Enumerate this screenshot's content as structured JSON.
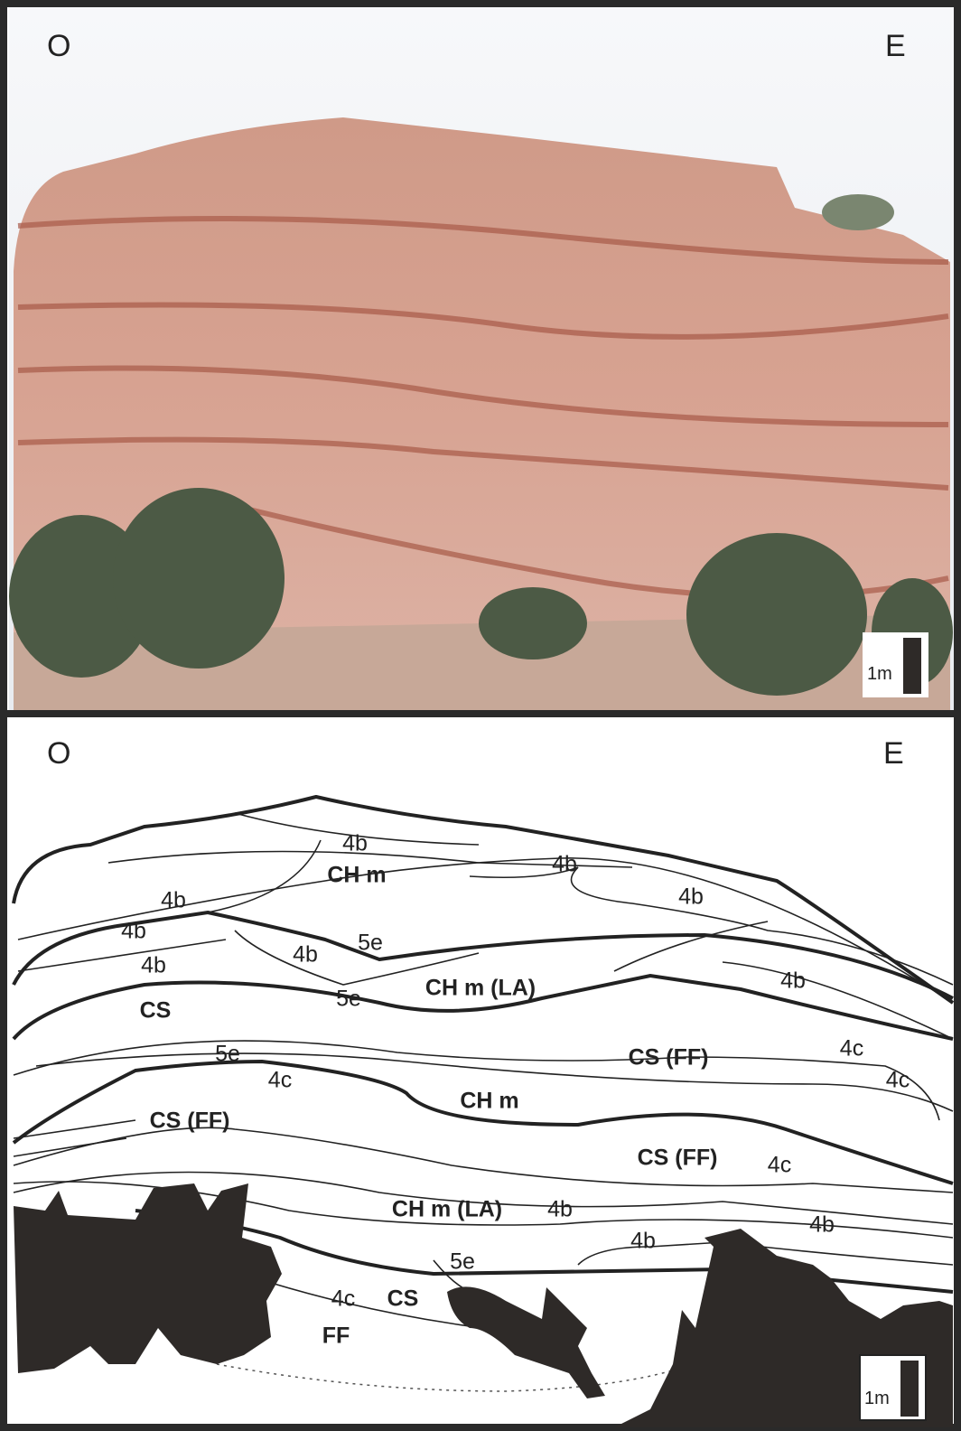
{
  "photo_panel": {
    "west_label": "O",
    "east_label": "E",
    "scale_label": "1m"
  },
  "sketch_panel": {
    "west_label": "O",
    "east_label": "E",
    "scale_label": "1m",
    "labels": [
      {
        "text": "4b",
        "bold": false
      },
      {
        "text": "4b",
        "bold": false
      },
      {
        "text": "CH m",
        "bold": true
      },
      {
        "text": "4b",
        "bold": false
      },
      {
        "text": "4b",
        "bold": false
      },
      {
        "text": "4b",
        "bold": false
      },
      {
        "text": "5e",
        "bold": false
      },
      {
        "text": "4b",
        "bold": false
      },
      {
        "text": "4b",
        "bold": false
      },
      {
        "text": "CH m (LA)",
        "bold": true
      },
      {
        "text": "4b",
        "bold": false
      },
      {
        "text": "5e",
        "bold": false
      },
      {
        "text": "CS",
        "bold": true
      },
      {
        "text": "CS (FF)",
        "bold": true
      },
      {
        "text": "4c",
        "bold": false
      },
      {
        "text": "5e",
        "bold": false
      },
      {
        "text": "4c",
        "bold": false
      },
      {
        "text": "4c",
        "bold": false
      },
      {
        "text": "CH m",
        "bold": true
      },
      {
        "text": "CS (FF)",
        "bold": true
      },
      {
        "text": "CS (FF)",
        "bold": true
      },
      {
        "text": "4c",
        "bold": false
      },
      {
        "text": "CH m (LA)",
        "bold": true
      },
      {
        "text": "4b",
        "bold": false
      },
      {
        "text": "4b",
        "bold": false
      },
      {
        "text": "4b",
        "bold": false
      },
      {
        "text": "5e",
        "bold": false
      },
      {
        "text": "4c",
        "bold": false
      },
      {
        "text": "CS",
        "bold": true
      },
      {
        "text": "FF",
        "bold": true
      }
    ]
  }
}
